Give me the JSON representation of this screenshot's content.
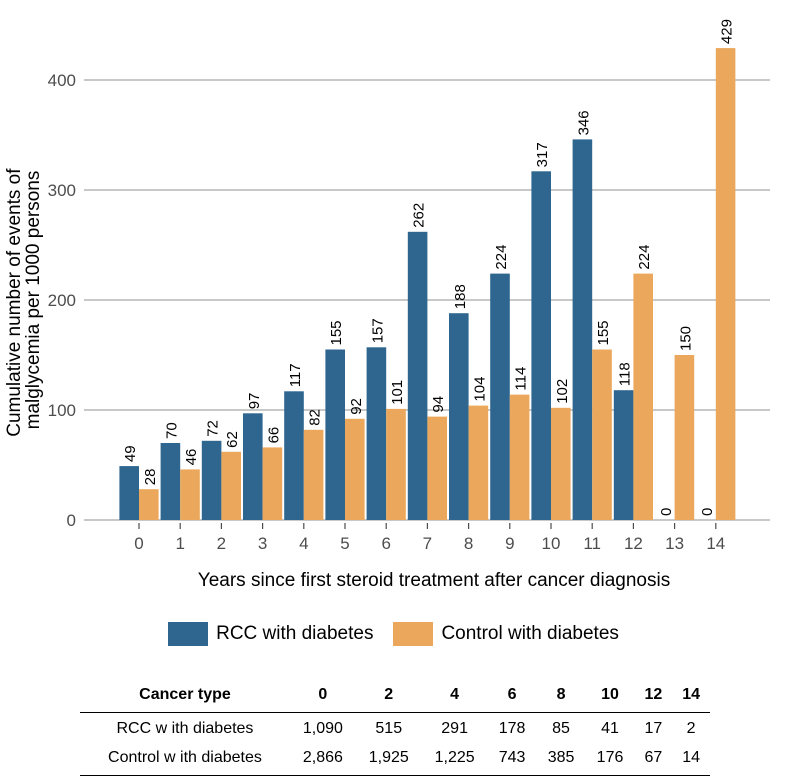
{
  "chart_data": {
    "type": "bar",
    "title": "",
    "xlabel": "Years since first steroid treatment after cancer diagnosis",
    "ylabel": "Cumulative number of events of malglycemia per 1000 persons",
    "ylabel_lines": [
      "Cumulative number of events of",
      "malglycemia per 1000 persons"
    ],
    "categories": [
      "0",
      "1",
      "2",
      "3",
      "4",
      "5",
      "6",
      "7",
      "8",
      "9",
      "10",
      "11",
      "12",
      "13",
      "14"
    ],
    "yticks": [
      0,
      100,
      200,
      300,
      400
    ],
    "ylim": [
      0,
      440
    ],
    "grid": "horizontal",
    "legend_position": "bottom",
    "series": [
      {
        "name": "RCC with diabetes",
        "color": "#2f6690",
        "values": [
          49,
          70,
          72,
          97,
          117,
          155,
          157,
          262,
          188,
          224,
          317,
          346,
          118,
          0,
          0
        ]
      },
      {
        "name": "Control with diabetes",
        "color": "#eba85c",
        "values": [
          28,
          46,
          62,
          66,
          82,
          92,
          101,
          94,
          104,
          114,
          102,
          155,
          224,
          150,
          429
        ]
      }
    ]
  },
  "legend": {
    "items": [
      {
        "label": "RCC with diabetes",
        "color": "#2f6690"
      },
      {
        "label": "Control with diabetes",
        "color": "#eba85c"
      }
    ]
  },
  "table": {
    "header": [
      "Cancer type",
      "0",
      "2",
      "4",
      "6",
      "8",
      "10",
      "12",
      "14"
    ],
    "rows": [
      [
        "RCC w ith diabetes",
        "1,090",
        "515",
        "291",
        "178",
        "85",
        "41",
        "17",
        "2"
      ],
      [
        "Control w ith diabetes",
        "2,866",
        "1,925",
        "1,225",
        "743",
        "385",
        "176",
        "67",
        "14"
      ]
    ]
  }
}
